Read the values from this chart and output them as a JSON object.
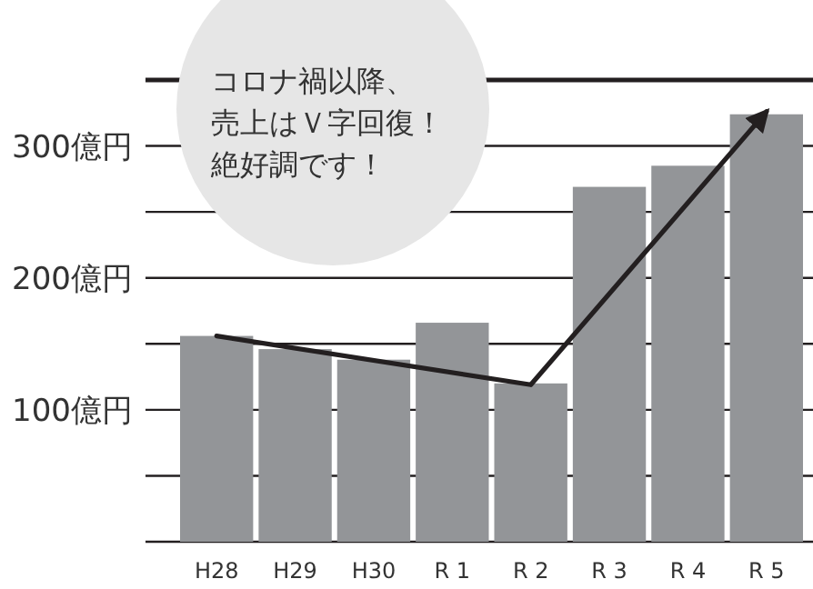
{
  "chart_data": {
    "type": "bar",
    "categories": [
      "H28",
      "H29",
      "H30",
      "R 1",
      "R 2",
      "R 3",
      "R 4",
      "R 5"
    ],
    "series": [
      {
        "color": "#939598",
        "values": [
          156,
          146,
          138,
          166,
          120,
          269,
          285,
          324
        ]
      },
      {
        "type": "line",
        "color": "#231f20",
        "x": [
          "H28",
          "R 2",
          "R 5"
        ],
        "values": [
          156,
          119,
          326
        ]
      }
    ],
    "ylim": [
      0,
      350
    ],
    "yticks": [
      {
        "value": 0,
        "label": null
      },
      {
        "value": 50,
        "label": null
      },
      {
        "value": 100,
        "label": "100億円"
      },
      {
        "value": 150,
        "label": null
      },
      {
        "value": 200,
        "label": "200億円"
      },
      {
        "value": 250,
        "label": null
      },
      {
        "value": 300,
        "label": "300億円"
      },
      {
        "value": 350,
        "label": null
      }
    ],
    "grid": "y",
    "annotations": [
      "コロナ禍以降、",
      "売上はＶ字回復！",
      "絶好調です！"
    ]
  }
}
